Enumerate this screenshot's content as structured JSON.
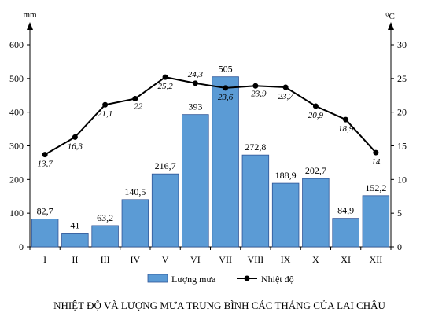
{
  "chart_data": {
    "type": "bar+line",
    "title": "NHIỆT ĐỘ VÀ LƯỢNG MƯA TRUNG BÌNH CÁC THÁNG CỦA LAI CHÂU",
    "categories": [
      "I",
      "II",
      "III",
      "IV",
      "V",
      "VI",
      "VII",
      "VIII",
      "IX",
      "X",
      "XI",
      "XII"
    ],
    "left_axis": {
      "unit": "mm",
      "ylim": [
        0,
        600
      ],
      "ticks": [
        "0",
        "100",
        "200",
        "300",
        "400",
        "500",
        "600"
      ]
    },
    "right_axis": {
      "unit": "⁰C",
      "ylim": [
        0,
        30
      ],
      "ticks": [
        "0",
        "5",
        "10",
        "15",
        "20",
        "25",
        "30"
      ]
    },
    "series": [
      {
        "name": "Lượng mưa",
        "type": "bar",
        "axis": "left",
        "values": [
          82.7,
          41,
          63.2,
          140.5,
          216.7,
          393,
          505,
          272.8,
          188.9,
          202.7,
          84.9,
          152.2
        ],
        "labels": [
          "82,7",
          "41",
          "63,2",
          "140,5",
          "216,7",
          "393",
          "505",
          "272,8",
          "188,9",
          "202,7",
          "84,9",
          "152,2"
        ],
        "color": "#5B9BD5"
      },
      {
        "name": "Nhiệt độ",
        "type": "line",
        "axis": "right",
        "values": [
          13.7,
          16.3,
          21.1,
          22,
          25.2,
          24.3,
          23.6,
          23.9,
          23.7,
          20.9,
          18.9,
          14
        ],
        "labels": [
          "13,7",
          "16,3",
          "21,1",
          "22",
          "25,2",
          "24,3",
          "23,6",
          "23,9",
          "23,7",
          "20,9",
          "18,9",
          "14"
        ],
        "color": "#000000"
      }
    ],
    "legend": "bottom",
    "grid": false
  }
}
